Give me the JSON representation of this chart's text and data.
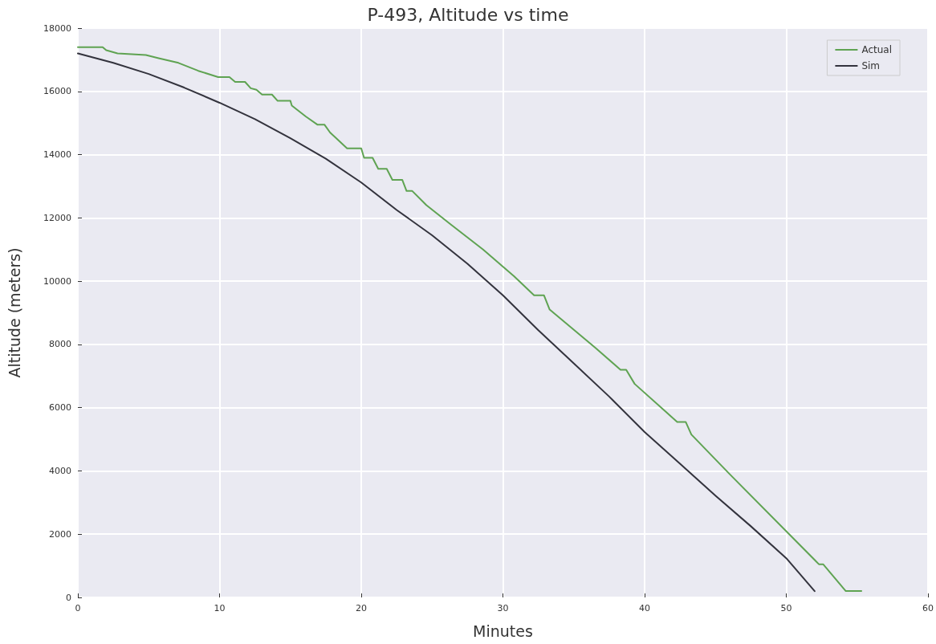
{
  "chart_data": {
    "type": "line",
    "title": "P-493, Altitude vs time",
    "xlabel": "Minutes",
    "ylabel": "Altitude (meters)",
    "xlim": [
      0,
      60
    ],
    "xticks": [
      0,
      10,
      20,
      30,
      40,
      50,
      60
    ],
    "ylim": [
      0,
      18000
    ],
    "yticks": [
      0,
      2000,
      4000,
      6000,
      8000,
      10000,
      12000,
      14000,
      16000,
      18000
    ],
    "grid": true,
    "legend": "top right",
    "marker": "none",
    "line_style": "solid",
    "series": [
      {
        "name": "Actual",
        "color": "#5fa352",
        "x": [
          0,
          1.75,
          2,
          2.8,
          4.8,
          5.7,
          7.1,
          8.5,
          9.9,
          10.7,
          11.1,
          11.8,
          12.2,
          12.6,
          13,
          13.7,
          14.1,
          15,
          15.1,
          16.1,
          16.9,
          17.4,
          17.8,
          19,
          20,
          20.2,
          20.8,
          21.2,
          21.8,
          22.2,
          22.9,
          23.2,
          23.6,
          24.6,
          26.3,
          28.6,
          30.8,
          32.2,
          32.9,
          33.3,
          36.5,
          38.3,
          38.7,
          39.3,
          42.3,
          42.9,
          43.3,
          46,
          52.3,
          52.6,
          54.2,
          55.3
        ],
        "values": [
          17400,
          17400,
          17300,
          17200,
          17150,
          17050,
          16900,
          16650,
          16450,
          16450,
          16300,
          16300,
          16100,
          16050,
          15900,
          15900,
          15700,
          15700,
          15550,
          15200,
          14950,
          14950,
          14700,
          14200,
          14200,
          13900,
          13900,
          13550,
          13550,
          13200,
          13200,
          12850,
          12850,
          12400,
          11800,
          11000,
          10150,
          9550,
          9550,
          9100,
          7900,
          7200,
          7200,
          6750,
          5550,
          5550,
          5150,
          3900,
          1050,
          1050,
          200,
          200
        ]
      },
      {
        "name": "Sim",
        "color": "#33333d",
        "x": [
          0,
          2.5,
          5,
          7.5,
          10,
          12.5,
          15,
          17.5,
          20,
          22.5,
          25,
          27.5,
          30,
          32.5,
          35,
          37.5,
          40,
          42.5,
          45,
          47.5,
          50,
          52
        ],
        "values": [
          17200,
          16900,
          16550,
          16120,
          15640,
          15120,
          14520,
          13870,
          13120,
          12250,
          11450,
          10550,
          9550,
          8450,
          7400,
          6350,
          5230,
          4230,
          3220,
          2250,
          1240,
          200
        ]
      }
    ]
  }
}
